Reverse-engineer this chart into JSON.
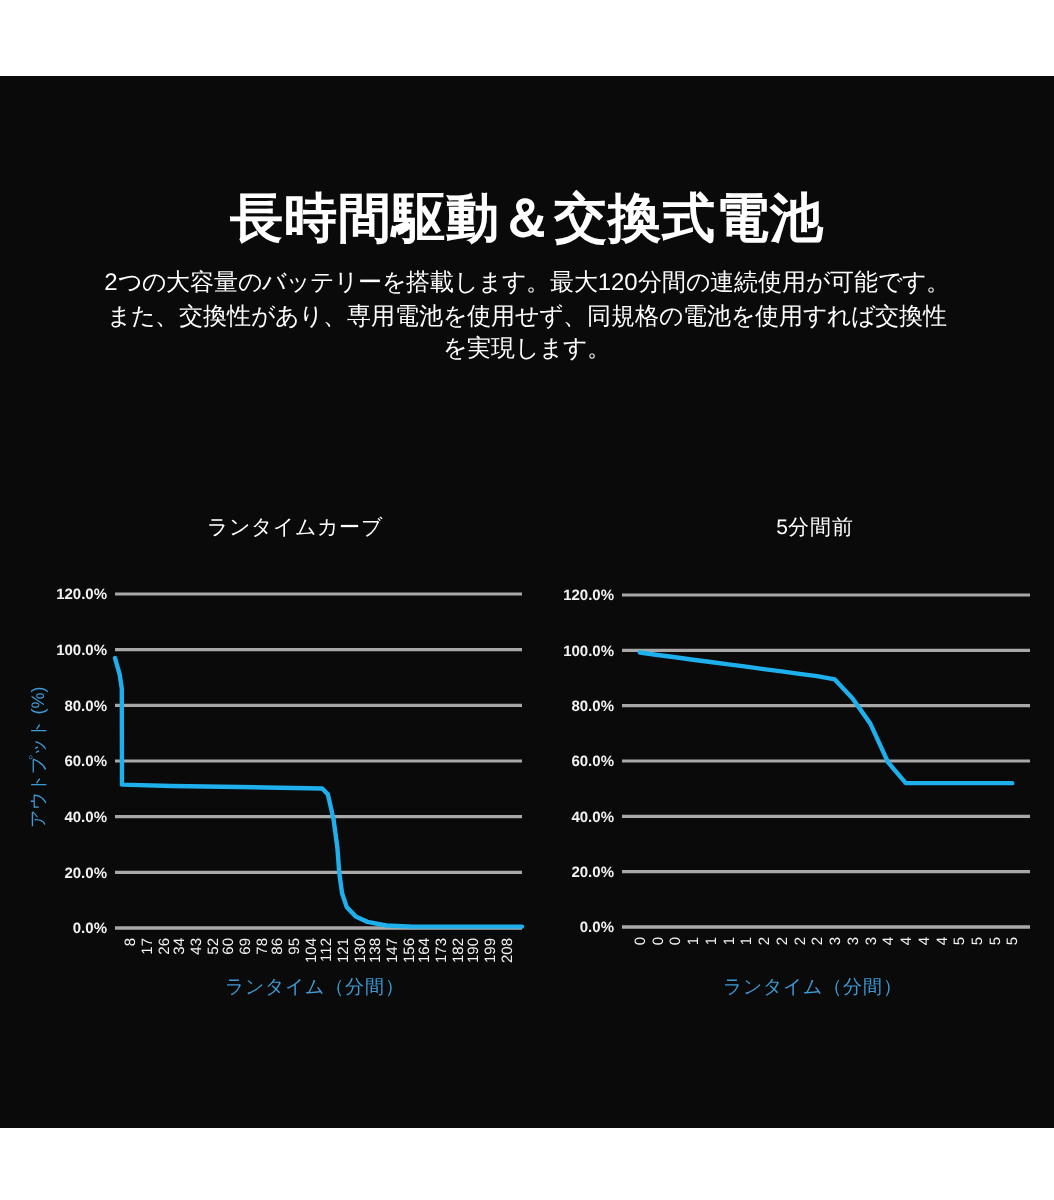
{
  "chart_data": [
    {
      "type": "other",
      "title": "長時間駆動＆交換式電池",
      "subtitle": "2つの大容量のバッテリーを搭載します。最大120分間の連続使用が可能です。また、交換性があり、専用電池を使用せず、同規格の電池を使用すれば交換性を実現します。"
    },
    {
      "type": "line",
      "title": "ランタイムカーブ",
      "xlabel": "ランタイム（分間）",
      "ylabel": "アウトプット (%)",
      "color": "#1eb0ec",
      "x": [
        0,
        2.5,
        3.6,
        3.7,
        30,
        80,
        110,
        113,
        116,
        118,
        119,
        120.5,
        123,
        128,
        134,
        144,
        158,
        216
      ],
      "values": [
        97,
        91,
        86,
        51.5,
        51,
        50.5,
        50.1,
        48,
        39,
        29,
        20,
        12.5,
        7.5,
        4,
        2.2,
        0.9,
        0.5,
        0.5
      ],
      "xlim": [
        0,
        216
      ],
      "xticks": [
        8,
        17,
        26,
        34,
        43,
        52,
        60,
        69,
        78,
        86,
        95,
        104,
        112,
        121,
        130,
        138,
        147,
        156,
        164,
        173,
        182,
        190,
        199,
        208
      ],
      "ylim": [
        0,
        120
      ],
      "yticks": [
        {
          "value": 0,
          "label": "0.0%"
        },
        {
          "value": 20,
          "label": "20.0%"
        },
        {
          "value": 40,
          "label": "40.0%"
        },
        {
          "value": 60,
          "label": "60.0%"
        },
        {
          "value": 80,
          "label": "80.0%"
        },
        {
          "value": 100,
          "label": "100.0%"
        },
        {
          "value": 120,
          "label": "120.0%"
        }
      ],
      "grid": "y"
    },
    {
      "type": "line",
      "title": "5分間前",
      "xlabel": "ランタイム（分間）",
      "color": "#1eb0ec",
      "categories": [
        "0",
        "0",
        "0",
        "1",
        "1",
        "1",
        "1",
        "2",
        "2",
        "2",
        "2",
        "3",
        "3",
        "3",
        "4",
        "4",
        "4",
        "4",
        "5",
        "5",
        "5",
        "5"
      ],
      "values": [
        99.2,
        98.3,
        97.5,
        96.6,
        95.8,
        94.9,
        94.1,
        93.2,
        92.4,
        91.5,
        90.7,
        89.5,
        82.6,
        73.5,
        59.5,
        52,
        52,
        52,
        52,
        52,
        52,
        52
      ],
      "ylim": [
        0,
        120
      ],
      "yticks": [
        {
          "value": 0,
          "label": "0.0%"
        },
        {
          "value": 20,
          "label": "20.0%"
        },
        {
          "value": 40,
          "label": "40.0%"
        },
        {
          "value": 60,
          "label": "60.0%"
        },
        {
          "value": 80,
          "label": "80.0%"
        },
        {
          "value": 100,
          "label": "100.0%"
        },
        {
          "value": 120,
          "label": "120.0%"
        }
      ],
      "grid": "y"
    }
  ]
}
